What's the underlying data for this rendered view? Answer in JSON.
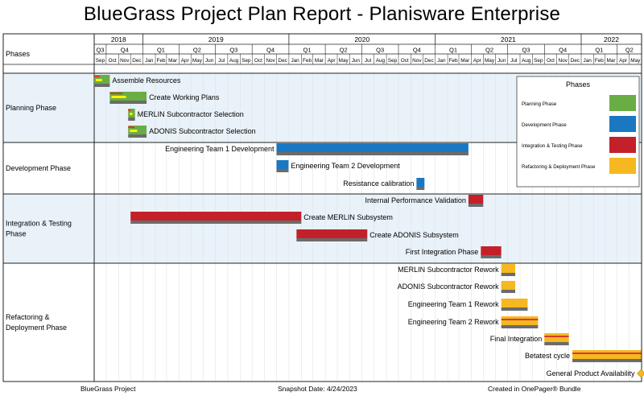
{
  "title": "BlueGrass Project Plan Report - Planisware Enterprise",
  "footer": {
    "left": "BlueGrass Project",
    "center": "Snapshot Date: 4/24/2023",
    "right": "Created in OnePager® Bundle"
  },
  "chart_data": {
    "type": "gantt",
    "header_label": "Phases",
    "years": [
      "2018",
      "2019",
      "2020",
      "2021",
      "2022"
    ],
    "quarters": [
      "Q3",
      "Q4",
      "Q1",
      "Q2",
      "Q3",
      "Q4",
      "Q1",
      "Q2",
      "Q3",
      "Q4",
      "Q1",
      "Q2",
      "Q3",
      "Q4",
      "Q1",
      "Q2"
    ],
    "months": [
      "Sep",
      "Oct",
      "Nov",
      "Dec",
      "Jan",
      "Feb",
      "Mar",
      "Apr",
      "May",
      "Jun",
      "Jul",
      "Aug",
      "Sep",
      "Oct",
      "Nov",
      "Dec",
      "Jan",
      "Feb",
      "Mar",
      "Apr",
      "May",
      "Jun",
      "Jul",
      "Aug",
      "Sep",
      "Oct",
      "Nov",
      "Dec",
      "Jan",
      "Feb",
      "Mar",
      "Apr",
      "May",
      "Jun",
      "Jul",
      "Aug",
      "Sep",
      "Oct",
      "Nov",
      "Dec",
      "Jan",
      "Feb",
      "Mar",
      "Apr",
      "May"
    ],
    "legend": {
      "title": "Phases",
      "items": [
        {
          "label": "Planning Phase",
          "color": "#6aad45"
        },
        {
          "label": "Development Phase",
          "color": "#1a78c2"
        },
        {
          "label": "Integration & Testing Phase",
          "color": "#c4202a"
        },
        {
          "label": "Refactoring & Deployment Phase",
          "color": "#f5b820"
        }
      ]
    },
    "swimlanes": [
      {
        "name": "Planning Phase",
        "color": "#6aad45",
        "shaded": true,
        "rows": 4
      },
      {
        "name": "Development Phase",
        "color": "#1a78c2",
        "shaded": false,
        "rows": 3
      },
      {
        "name": "Integration & Testing Phase",
        "color": "#c4202a",
        "shaded": true,
        "rows": 4
      },
      {
        "name": "Refactoring & Deployment Phase",
        "color": "#f5b820",
        "shaded": false,
        "rows": 7
      }
    ],
    "tasks": [
      {
        "name": "Assemble Resources",
        "lane": 0,
        "start": "2018-09-01",
        "end": "2018-10-10",
        "label_side": "right",
        "progress": true
      },
      {
        "name": "Create Working Plans",
        "lane": 0,
        "start": "2018-10-10",
        "end": "2019-01-10",
        "label_side": "right",
        "progress": true
      },
      {
        "name": "MERLIN Subcontractor Selection",
        "lane": 0,
        "start": "2018-11-25",
        "end": "2018-12-12",
        "label_side": "right",
        "progress": true
      },
      {
        "name": "ADONIS Subcontractor Selection",
        "lane": 0,
        "start": "2018-11-25",
        "end": "2019-01-10",
        "label_side": "right",
        "progress": true
      },
      {
        "name": "Engineering Team 1 Development",
        "lane": 1,
        "start": "2019-12-01",
        "end": "2021-03-25",
        "label_side": "left",
        "progress": false
      },
      {
        "name": "Engineering Team 2 Development",
        "lane": 1,
        "start": "2019-12-01",
        "end": "2019-12-31",
        "label_side": "right",
        "progress": false
      },
      {
        "name": "Resistance calibration",
        "lane": 1,
        "start": "2020-11-15",
        "end": "2020-12-05",
        "label_side": "left",
        "progress": false
      },
      {
        "name": "Internal Performance Validation",
        "lane": 2,
        "start": "2021-03-25",
        "end": "2021-05-01",
        "label_side": "left",
        "progress": false
      },
      {
        "name": "Create MERLIN Subsystem",
        "lane": 2,
        "start": "2018-12-01",
        "end": "2020-02-01",
        "label_side": "right",
        "progress": false
      },
      {
        "name": "Create ADONIS Subsystem",
        "lane": 2,
        "start": "2020-01-20",
        "end": "2020-07-15",
        "label_side": "right",
        "progress": false
      },
      {
        "name": "First Integration Phase",
        "lane": 2,
        "start": "2021-04-25",
        "end": "2021-06-15",
        "label_side": "left",
        "progress": false
      },
      {
        "name": "MERLIN Subcontractor Rework",
        "lane": 3,
        "start": "2021-06-15",
        "end": "2021-07-20",
        "label_side": "left",
        "progress": false
      },
      {
        "name": "ADONIS Subcontractor Rework",
        "lane": 3,
        "start": "2021-06-15",
        "end": "2021-07-20",
        "label_side": "left",
        "progress": false
      },
      {
        "name": "Engineering Team 1 Rework",
        "lane": 3,
        "start": "2021-06-15",
        "end": "2021-08-20",
        "label_side": "left",
        "progress": false
      },
      {
        "name": "Engineering Team 2 Rework",
        "lane": 3,
        "start": "2021-06-15",
        "end": "2021-09-15",
        "label_side": "left",
        "progress": true
      },
      {
        "name": "Final Integration",
        "lane": 3,
        "start": "2021-10-01",
        "end": "2021-12-01",
        "label_side": "left",
        "progress": true
      },
      {
        "name": "Betatest cycle",
        "lane": 3,
        "start": "2021-12-10",
        "end": "2022-05-31",
        "label_side": "left",
        "progress": true
      },
      {
        "name": "General Product Availability",
        "lane": 3,
        "start": "2022-05-31",
        "end": "2022-05-31",
        "label_side": "left",
        "milestone": true
      }
    ]
  }
}
